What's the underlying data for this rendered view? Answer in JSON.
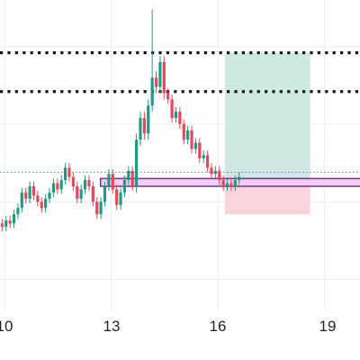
{
  "colors": {
    "up": "#1f9a80",
    "down": "#e8455a",
    "grid": "#ececec",
    "level_line": "#111111",
    "price_line": "#4a90c8",
    "zone_fill": "#f0cdf3",
    "zone_stroke": "#7b2d8b",
    "target_fill": "#cfe9e2",
    "stop_fill": "#f9d5dc"
  },
  "chart_data": {
    "type": "candlestick",
    "title": "",
    "xlabel": "",
    "ylabel": "",
    "grid": true,
    "legend": "none",
    "xlim": [
      9.6,
      19.9
    ],
    "ylim": [
      0,
      100
    ],
    "x_ticks": [
      {
        "value": 10,
        "label": "10"
      },
      {
        "value": 13,
        "label": "13"
      },
      {
        "value": 16,
        "label": "16"
      },
      {
        "value": 19,
        "label": "19"
      }
    ],
    "levels": [
      {
        "name": "upper-level",
        "y": 83,
        "style": "dotted"
      },
      {
        "name": "lower-level",
        "y": 70.5,
        "style": "dotted"
      },
      {
        "name": "price-line",
        "y": 44.5,
        "style": "dotted"
      }
    ],
    "zone": {
      "x": [
        12.7,
        20.0
      ],
      "y": [
        40,
        42.5
      ]
    },
    "position": {
      "x": [
        16.2,
        18.6
      ],
      "entry": 42.5,
      "target": 83,
      "stop": 31
    }
  }
}
